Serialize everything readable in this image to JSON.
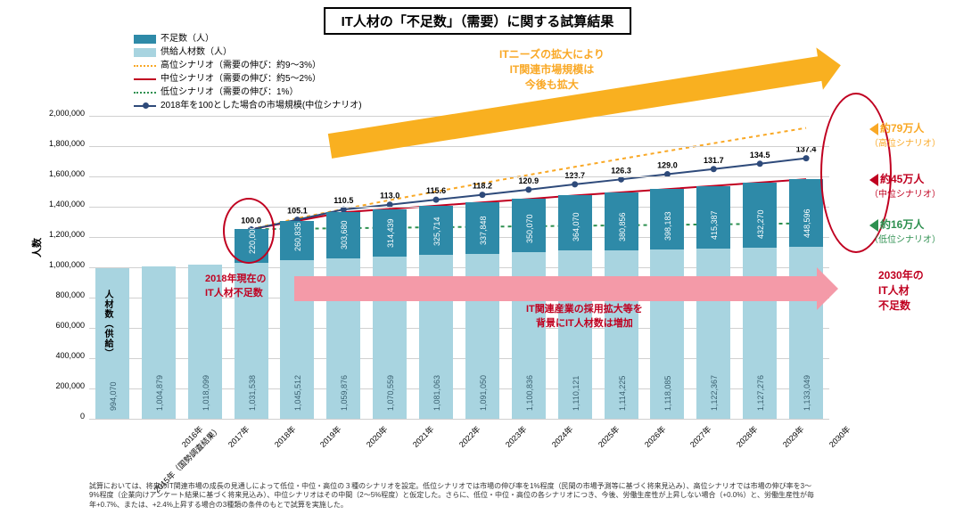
{
  "title": "IT人材の「不足数」（需要）に関する試算結果",
  "y_axis_label": "人数",
  "legend": {
    "shortage": "不足数（人）",
    "supply": "供給人材数（人）",
    "high": "高位シナリオ（需要の伸び：約9～3%）",
    "mid": "中位シナリオ（需要の伸び：約5～2%）",
    "low": "低位シナリオ（需要の伸び：1%）",
    "index": "2018年を100とした場合の市場規模(中位シナリオ)"
  },
  "colors": {
    "shortage_bar": "#2e8aa8",
    "supply_bar": "#a8d4e0",
    "high_line": "#f9a825",
    "mid_line": "#c00020",
    "low_line": "#2e9050",
    "index_line": "#2e4a7a",
    "arrow_orange": "#f9b020",
    "arrow_pink": "#f49aa8",
    "grid": "#d0d0d0",
    "background": "#ffffff"
  },
  "y_axis": {
    "min": 0,
    "max": 2000000,
    "step": 200000,
    "ticks": [
      "0",
      "200,000",
      "400,000",
      "600,000",
      "800,000",
      "1,000,000",
      "1,200,000",
      "1,400,000",
      "1,600,000",
      "1,800,000",
      "2,000,000"
    ]
  },
  "x_labels": [
    "2015年（国勢調査結果）",
    "2016年",
    "2017年",
    "2018年",
    "2019年",
    "2020年",
    "2021年",
    "2022年",
    "2023年",
    "2024年",
    "2025年",
    "2026年",
    "2027年",
    "2028年",
    "2029年",
    "2030年"
  ],
  "supply": [
    994070,
    1004879,
    1018099,
    1031538,
    1045512,
    1059876,
    1070559,
    1081063,
    1091050,
    1100836,
    1110121,
    1114225,
    1118085,
    1122367,
    1127276,
    1133049
  ],
  "shortage_mid": [
    null,
    null,
    null,
    220000,
    260835,
    303680,
    314439,
    325714,
    337848,
    350070,
    364070,
    380856,
    398183,
    415387,
    432270,
    448596
  ],
  "index_values": [
    null,
    null,
    null,
    100.0,
    105.1,
    110.5,
    113.0,
    115.6,
    118.2,
    120.9,
    123.7,
    126.3,
    129.0,
    131.7,
    134.5,
    137.4
  ],
  "scenario_end_totals": {
    "high": 1920000,
    "mid": 1582000,
    "low": 1290000
  },
  "annotations": {
    "orange_text": "ITニーズの拡大により\nIT関連市場規模は\n今後も拡大",
    "pink_text": "IT関連産業の採用拡大等を\n背景にIT人材数は増加",
    "red_2018": "2018年現在の\nIT人材不足数",
    "supply_label": "人材数（供給）"
  },
  "callouts": {
    "high": {
      "main": "約79万人",
      "sub": "（高位シナリオ）"
    },
    "mid": {
      "main": "約45万人",
      "sub": "（中位シナリオ）"
    },
    "low": {
      "main": "約16万人",
      "sub": "（低位シナリオ）"
    },
    "year2030": "2030年の\nIT人材\n不足数"
  },
  "footnote": "試算においては、将来のIT関連市場の成長の見通しによって低位・中位・高位の３種のシナリオを設定。低位シナリオでは市場の伸び率を1%程度（民間の市場予測等に基づく将来見込み）、高位シナリオでは市場の伸び率を3～9%程度（企業向けアンケート結果に基づく将来見込み）、中位シナリオはその中間（2～5%程度）と仮定した。さらに、低位・中位・高位の各シナリオにつき、今後、労働生産性が上昇しない場合（+0.0%）と、労働生産性が毎年+0.7%、または、+2.4%上昇する場合の3種類の条件のもとで試算を実施した。"
}
